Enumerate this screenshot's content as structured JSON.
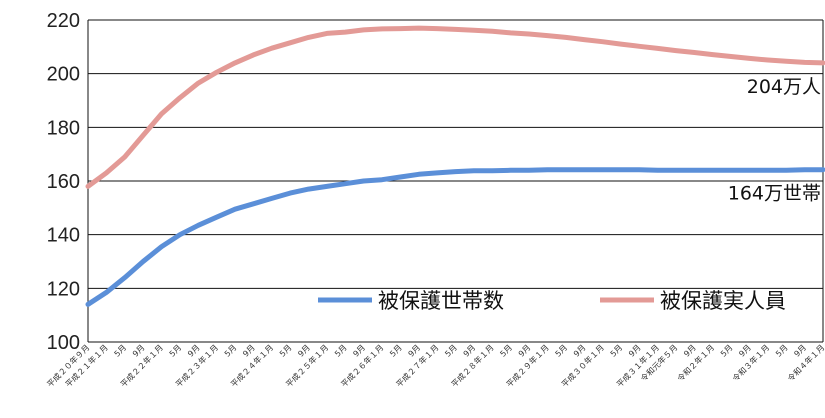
{
  "chart_data": {
    "type": "line",
    "ylim": [
      100,
      220
    ],
    "yticks": [
      "100",
      "120",
      "140",
      "160",
      "180",
      "200",
      "220"
    ],
    "grid": true,
    "legend_position": "bottom-center",
    "x_tick_labels": [
      "平成２０年９月",
      "平成２１年１月",
      "5月",
      "9月",
      "平成２２年１月",
      "5月",
      "9月",
      "平成２３年１月",
      "5月",
      "9月",
      "平成２４年１月",
      "5月",
      "9月",
      "平成２５年１月",
      "5月",
      "9月",
      "平成２６年１月",
      "5月",
      "9月",
      "平成２７年１月",
      "5月",
      "9月",
      "平成２８年１月",
      "5月",
      "9月",
      "平成２９年１月",
      "5月",
      "9月",
      "平成３０年１月",
      "5月",
      "9月",
      "平成３１年１月",
      "令和元年５月",
      "9月",
      "令和２年１月",
      "5月",
      "9月",
      "令和３年１月",
      "5月",
      "9月",
      "令和４年１月"
    ],
    "series": [
      {
        "name": "被保護世帯数",
        "color": "#5b8fd8",
        "end_label": "164万世帯",
        "values": [
          114,
          118.5,
          124,
          130,
          135.5,
          140,
          143.5,
          146.5,
          149.5,
          151.5,
          153.5,
          155.5,
          157,
          158,
          159,
          160,
          160.5,
          161.5,
          162.5,
          163,
          163.5,
          163.8,
          163.8,
          164,
          164,
          164.2,
          164.2,
          164.2,
          164.2,
          164.2,
          164.2,
          164,
          164,
          164,
          164,
          164,
          164,
          164,
          164,
          164.2,
          164.2
        ]
      },
      {
        "name": "被保護実人員",
        "color": "#e39a96",
        "end_label": "204万人",
        "values": [
          158,
          163,
          169,
          177,
          185,
          191,
          196.5,
          200.5,
          204,
          207,
          209.5,
          211.5,
          213.5,
          215,
          215.5,
          216.3,
          216.7,
          216.8,
          217,
          216.8,
          216.5,
          216.2,
          215.8,
          215.2,
          214.8,
          214.2,
          213.5,
          212.7,
          211.9,
          211,
          210.2,
          209.4,
          208.6,
          207.9,
          207.1,
          206.4,
          205.7,
          205.1,
          204.6,
          204.2,
          204
        ]
      }
    ]
  }
}
